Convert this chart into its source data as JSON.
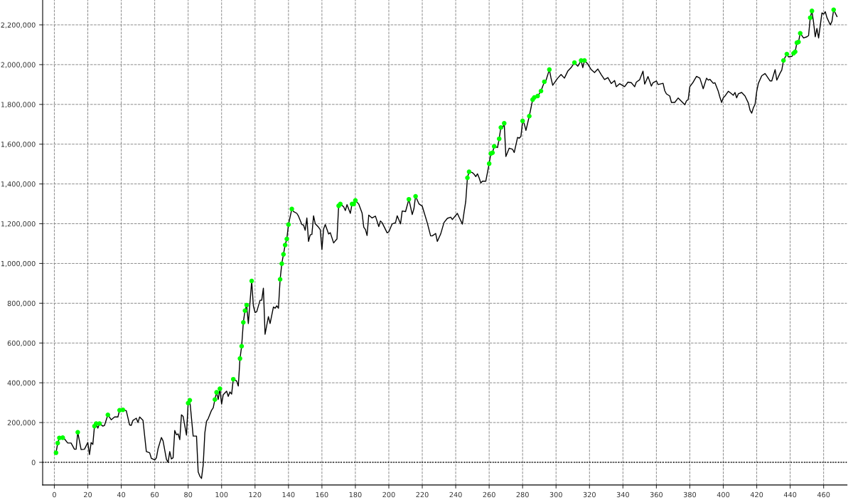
{
  "chart_data": {
    "type": "line",
    "xlim": [
      -7,
      474
    ],
    "ylim": [
      -114000,
      2325000
    ],
    "xticks": [
      0,
      20,
      40,
      60,
      80,
      100,
      120,
      140,
      160,
      180,
      200,
      220,
      240,
      260,
      280,
      300,
      320,
      340,
      360,
      380,
      400,
      420,
      440,
      460
    ],
    "yticks": [
      {
        "value": 0,
        "label": "0"
      },
      {
        "value": 200000,
        "label": "200,000"
      },
      {
        "value": 400000,
        "label": "400,000"
      },
      {
        "value": 600000,
        "label": "600,000"
      },
      {
        "value": 800000,
        "label": "800,000"
      },
      {
        "value": 1000000,
        "label": "1,000,000"
      },
      {
        "value": 1200000,
        "label": "1,200,000"
      },
      {
        "value": 1400000,
        "label": "1,400,000"
      },
      {
        "value": 1600000,
        "label": "1,600,000"
      },
      {
        "value": 1800000,
        "label": "1,800,000"
      },
      {
        "value": 2000000,
        "label": "2,000,000"
      },
      {
        "value": 2200000,
        "label": "2,200,000"
      }
    ],
    "grid": true,
    "legend": false,
    "ref_lines": [
      {
        "axis": "y",
        "value": 0,
        "color": "#000000",
        "line_style": "dotted"
      }
    ],
    "series": [
      {
        "color": "#000000",
        "marker": "none",
        "line_style": "solid",
        "x": [
          1,
          2,
          3,
          5,
          6,
          8,
          10,
          12,
          13,
          14,
          16,
          18,
          20,
          21,
          22,
          23,
          24,
          25,
          26,
          27,
          29,
          30,
          32,
          34,
          36,
          38,
          39,
          41,
          43,
          45,
          46,
          47,
          49,
          50,
          51,
          53,
          55,
          57,
          58,
          60,
          61,
          62,
          64,
          65,
          67,
          68,
          69,
          70,
          71,
          72,
          73,
          74,
          75,
          76,
          77,
          79,
          80,
          81,
          83,
          85,
          86,
          87,
          88,
          89,
          90,
          91,
          92,
          94,
          95,
          96,
          97,
          98,
          99,
          100,
          101,
          103,
          104,
          105,
          106,
          107,
          109,
          110,
          111,
          112,
          113,
          114,
          115,
          116,
          118,
          119,
          120,
          121,
          123,
          124,
          125,
          126,
          128,
          129,
          131,
          132,
          133,
          134,
          135,
          136,
          137,
          138,
          139,
          140,
          142,
          143,
          145,
          146,
          148,
          149,
          150,
          151,
          152,
          153,
          154,
          155,
          156,
          158,
          159,
          160,
          161,
          162,
          164,
          165,
          167,
          168,
          169,
          170,
          171,
          173,
          174,
          175,
          177,
          178,
          179,
          180,
          182,
          184,
          185,
          186,
          187,
          188,
          190,
          192,
          194,
          195,
          196,
          199,
          200,
          202,
          204,
          205,
          207,
          208,
          210,
          212,
          214,
          215,
          216,
          218,
          220,
          223,
          225,
          226,
          228,
          229,
          231,
          233,
          235,
          237,
          238,
          241,
          242,
          244,
          245,
          246,
          247,
          248,
          250,
          251,
          252,
          253,
          254,
          255,
          256,
          258,
          260,
          261,
          262,
          263,
          265,
          266,
          267,
          268,
          269,
          270,
          272,
          274,
          275,
          277,
          278,
          279,
          280,
          281,
          282,
          284,
          286,
          287,
          289,
          291,
          293,
          294,
          296,
          297,
          298,
          301,
          303,
          305,
          307,
          309,
          311,
          313,
          315,
          316,
          317,
          319,
          321,
          323,
          325,
          327,
          329,
          331,
          333,
          335,
          336,
          338,
          341,
          343,
          345,
          347,
          348,
          350,
          352,
          353,
          355,
          357,
          358,
          360,
          361,
          364,
          365,
          366,
          368,
          369,
          371,
          373,
          375,
          377,
          378,
          379,
          380,
          382,
          384,
          386,
          388,
          390,
          391,
          392,
          394,
          395,
          397,
          398,
          399,
          400,
          401,
          403,
          404,
          406,
          407,
          408,
          409,
          411,
          413,
          415,
          416,
          417,
          418,
          419,
          420,
          421,
          423,
          425,
          428,
          429,
          431,
          432,
          434,
          435,
          436,
          438,
          439,
          441,
          442,
          443,
          444,
          445,
          446,
          448,
          450,
          451,
          452,
          453,
          454,
          455,
          456,
          457,
          459,
          460,
          461,
          462,
          464,
          465,
          466,
          468
        ],
        "values": [
          48000,
          97000,
          123000,
          124000,
          118000,
          97000,
          97000,
          66000,
          66000,
          151000,
          64000,
          66000,
          100000,
          39000,
          100000,
          90000,
          182000,
          195000,
          172000,
          195000,
          182000,
          186000,
          239000,
          214000,
          228000,
          228000,
          262000,
          264000,
          260000,
          188000,
          186000,
          211000,
          222000,
          200000,
          228000,
          211000,
          54000,
          48000,
          20000,
          12000,
          22000,
          68000,
          125000,
          108000,
          16000,
          0,
          54000,
          17000,
          23000,
          160000,
          139000,
          143000,
          114000,
          239000,
          231000,
          137000,
          298000,
          312000,
          132000,
          132000,
          -48000,
          -70000,
          -81000,
          -14000,
          149000,
          206000,
          220000,
          262000,
          274000,
          316000,
          352000,
          316000,
          370000,
          293000,
          340000,
          358000,
          332000,
          354000,
          343000,
          418000,
          409000,
          384000,
          522000,
          584000,
          704000,
          763000,
          791000,
          698000,
          912000,
          787000,
          754000,
          757000,
          815000,
          815000,
          876000,
          644000,
          733000,
          698000,
          781000,
          775000,
          787000,
          775000,
          920000,
          999000,
          1046000,
          1093000,
          1123000,
          1196000,
          1274000,
          1261000,
          1252000,
          1238000,
          1196000,
          1193000,
          1167000,
          1229000,
          1111000,
          1144000,
          1146000,
          1240000,
          1200000,
          1182000,
          1170000,
          1071000,
          1173000,
          1196000,
          1148000,
          1155000,
          1103000,
          1114000,
          1123000,
          1290000,
          1299000,
          1285000,
          1266000,
          1296000,
          1252000,
          1299000,
          1299000,
          1317000,
          1299000,
          1254000,
          1183000,
          1171000,
          1141000,
          1243000,
          1229000,
          1238000,
          1186000,
          1214000,
          1205000,
          1154000,
          1159000,
          1199000,
          1205000,
          1240000,
          1199000,
          1264000,
          1261000,
          1323000,
          1246000,
          1275000,
          1338000,
          1300000,
          1288000,
          1204000,
          1139000,
          1139000,
          1151000,
          1111000,
          1148000,
          1206000,
          1227000,
          1233000,
          1221000,
          1252000,
          1233000,
          1198000,
          1258000,
          1312000,
          1431000,
          1461000,
          1457000,
          1449000,
          1437000,
          1451000,
          1431000,
          1405000,
          1414000,
          1414000,
          1502000,
          1553000,
          1557000,
          1589000,
          1583000,
          1627000,
          1684000,
          1680000,
          1705000,
          1538000,
          1580000,
          1574000,
          1558000,
          1634000,
          1630000,
          1639000,
          1717000,
          1702000,
          1669000,
          1741000,
          1824000,
          1835000,
          1842000,
          1867000,
          1914000,
          1921000,
          1975000,
          1932000,
          1896000,
          1932000,
          1950000,
          1932000,
          1967000,
          1985000,
          2010000,
          1992000,
          2021000,
          1985000,
          2021000,
          2003000,
          1975000,
          1960000,
          1978000,
          1950000,
          1925000,
          1935000,
          1905000,
          1920000,
          1889000,
          1904000,
          1889000,
          1912000,
          1909000,
          1889000,
          1912000,
          1924000,
          1967000,
          1902000,
          1940000,
          1892000,
          1909000,
          1918000,
          1900000,
          1906000,
          1869000,
          1853000,
          1842000,
          1810000,
          1810000,
          1832000,
          1815000,
          1798000,
          1818000,
          1824000,
          1889000,
          1912000,
          1941000,
          1932000,
          1879000,
          1932000,
          1922000,
          1926000,
          1906000,
          1909000,
          1866000,
          1836000,
          1810000,
          1833000,
          1842000,
          1866000,
          1860000,
          1846000,
          1860000,
          1833000,
          1853000,
          1860000,
          1842000,
          1807000,
          1771000,
          1756000,
          1783000,
          1800000,
          1866000,
          1906000,
          1944000,
          1955000,
          1918000,
          1918000,
          1975000,
          1922000,
          1958000,
          1973000,
          2021000,
          2053000,
          2039000,
          2041000,
          2057000,
          2065000,
          2110000,
          2114000,
          2158000,
          2134000,
          2140000,
          2146000,
          2236000,
          2270000,
          2212000,
          2140000,
          2182000,
          2134000,
          2260000,
          2254000,
          2266000,
          2236000,
          2200000,
          2218000,
          2276000,
          2242000
        ]
      },
      {
        "type": "scatter",
        "color": "#00ff00",
        "marker": "circle",
        "x": [
          1,
          2,
          3,
          5,
          14,
          24,
          25,
          27,
          32,
          39,
          41,
          80,
          81,
          96,
          97,
          99,
          107,
          111,
          112,
          113,
          114,
          115,
          118,
          135,
          136,
          137,
          138,
          139,
          140,
          142,
          170,
          171,
          178,
          179,
          180,
          212,
          216,
          247,
          248,
          260,
          261,
          262,
          263,
          266,
          267,
          269,
          280,
          284,
          286,
          287,
          289,
          291,
          293,
          296,
          311,
          315,
          317,
          436,
          438,
          442,
          443,
          444,
          445,
          446,
          452,
          453,
          466
        ],
        "values": [
          48000,
          97000,
          123000,
          124000,
          151000,
          182000,
          195000,
          195000,
          239000,
          262000,
          264000,
          298000,
          312000,
          316000,
          352000,
          370000,
          418000,
          522000,
          584000,
          704000,
          763000,
          791000,
          912000,
          920000,
          999000,
          1046000,
          1093000,
          1123000,
          1196000,
          1274000,
          1290000,
          1299000,
          1299000,
          1299000,
          1317000,
          1323000,
          1338000,
          1431000,
          1461000,
          1502000,
          1553000,
          1557000,
          1589000,
          1627000,
          1684000,
          1705000,
          1717000,
          1741000,
          1824000,
          1835000,
          1842000,
          1867000,
          1914000,
          1975000,
          2010000,
          2021000,
          2021000,
          2021000,
          2053000,
          2057000,
          2065000,
          2110000,
          2114000,
          2158000,
          2236000,
          2270000,
          2276000
        ]
      }
    ]
  }
}
